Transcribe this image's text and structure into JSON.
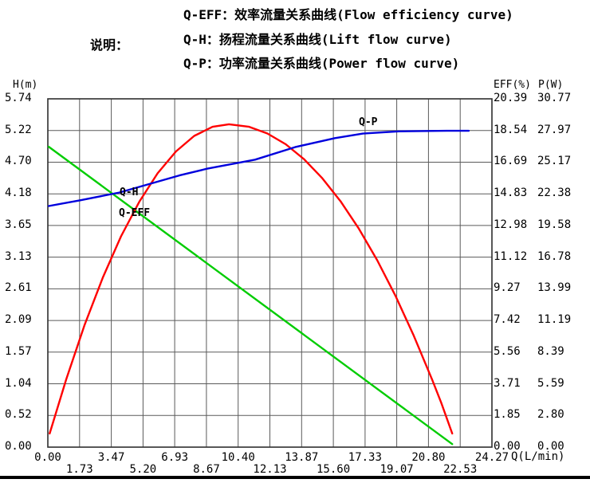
{
  "legend": {
    "title": "说明：",
    "items": [
      {
        "label": "Q-EFF：效率流量关系曲线(Flow efficiency curve)"
      },
      {
        "label": "Q-H：扬程流量关系曲线(Lift flow curve)"
      },
      {
        "label": "Q-P：功率流量关系曲线(Power flow curve)"
      }
    ]
  },
  "curve_labels": {
    "q_h": "Q-H",
    "q_eff": "Q-EFF",
    "q_p": "Q-P"
  },
  "colors": {
    "q_h_green": "#00cc00",
    "q_eff_red": "#ff0000",
    "q_p_blue": "#0000dd",
    "grid": "#5a5a5a",
    "border": "#2e2e2e",
    "text": "#000000",
    "background": "#ffffff",
    "bottom_bar": "#000000"
  },
  "chart_data": {
    "type": "line",
    "grid": true,
    "x_axis": {
      "label": "Q(L/min)",
      "min": 0,
      "max": 24.27,
      "ticks": [
        "0.00",
        "1.73",
        "3.47",
        "5.20",
        "6.93",
        "8.67",
        "10.40",
        "12.13",
        "13.87",
        "15.60",
        "17.33",
        "19.07",
        "20.80",
        "22.53",
        "24.27"
      ]
    },
    "y_axes": [
      {
        "id": "h",
        "label": "H(m)",
        "min": 0,
        "max": 5.74,
        "ticks": [
          "5.74",
          "5.22",
          "4.70",
          "4.18",
          "3.65",
          "3.13",
          "2.61",
          "2.09",
          "1.57",
          "1.04",
          "0.52",
          "0.00"
        ]
      },
      {
        "id": "eff",
        "label": "EFF(%)",
        "min": 0,
        "max": 20.39,
        "ticks": [
          "20.39",
          "18.54",
          "16.69",
          "14.83",
          "12.98",
          "11.12",
          "9.27",
          "7.42",
          "5.56",
          "3.71",
          "1.85",
          "0.00"
        ]
      },
      {
        "id": "p",
        "label": "P(W)",
        "min": 0,
        "max": 30.77,
        "ticks": [
          "30.77",
          "27.97",
          "25.17",
          "22.38",
          "19.58",
          "16.78",
          "13.99",
          "11.19",
          "8.39",
          "5.59",
          "2.80",
          "0.00"
        ]
      }
    ],
    "series": [
      {
        "name": "Q-H",
        "axis": "h",
        "color_key": "q_h_green",
        "points": [
          [
            0.05,
            4.95
          ],
          [
            22.1,
            0.05
          ]
        ]
      },
      {
        "name": "Q-EFF",
        "axis": "eff",
        "color_key": "q_eff_red",
        "points": [
          [
            0.1,
            0.8
          ],
          [
            1,
            3.96
          ],
          [
            2,
            7.13
          ],
          [
            3,
            9.92
          ],
          [
            4,
            12.34
          ],
          [
            5,
            14.37
          ],
          [
            6,
            16.03
          ],
          [
            7,
            17.31
          ],
          [
            8,
            18.22
          ],
          [
            9,
            18.75
          ],
          [
            9.9,
            18.9
          ],
          [
            11,
            18.75
          ],
          [
            12,
            18.36
          ],
          [
            13,
            17.73
          ],
          [
            14,
            16.86
          ],
          [
            15,
            15.74
          ],
          [
            16,
            14.39
          ],
          [
            17,
            12.78
          ],
          [
            18,
            10.94
          ],
          [
            19,
            8.85
          ],
          [
            20,
            6.52
          ],
          [
            21,
            3.95
          ],
          [
            21.5,
            2.6
          ],
          [
            22.1,
            0.8
          ]
        ]
      },
      {
        "name": "Q-P",
        "axis": "p",
        "color_key": "q_p_blue",
        "points": [
          [
            0.05,
            21.3
          ],
          [
            1.74,
            21.8
          ],
          [
            3.92,
            22.5
          ],
          [
            7.19,
            24.0
          ],
          [
            8.72,
            24.6
          ],
          [
            11.33,
            25.4
          ],
          [
            13.51,
            26.5
          ],
          [
            15.69,
            27.3
          ],
          [
            17.22,
            27.7
          ],
          [
            19.18,
            27.9
          ],
          [
            21.8,
            27.95
          ],
          [
            23.0,
            27.95
          ]
        ]
      }
    ]
  }
}
